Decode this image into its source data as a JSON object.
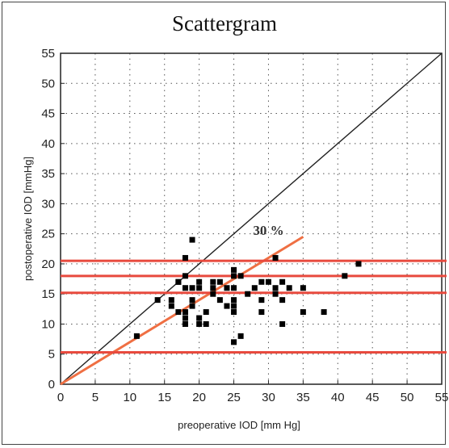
{
  "chart_data": {
    "type": "scatter",
    "title": "Scattergram",
    "xlabel": "preoperative IOD [mm Hg]",
    "ylabel": "postoperative IOD [mmHg]",
    "xlim": [
      0,
      55
    ],
    "ylim": [
      0,
      55
    ],
    "xticks": [
      "0",
      "5",
      "10",
      "15",
      "20",
      "25",
      "30",
      "35",
      "40",
      "45",
      "50",
      "55"
    ],
    "yticks": [
      "0",
      "5",
      "10",
      "15",
      "20",
      "25",
      "30",
      "35",
      "40",
      "45",
      "50",
      "55"
    ],
    "grid": true,
    "points": [
      [
        11,
        8
      ],
      [
        14,
        14
      ],
      [
        16,
        13
      ],
      [
        16,
        14
      ],
      [
        17,
        12
      ],
      [
        17,
        17
      ],
      [
        17,
        17
      ],
      [
        18,
        10
      ],
      [
        18,
        11
      ],
      [
        18,
        12
      ],
      [
        18,
        16
      ],
      [
        18,
        21
      ],
      [
        18,
        18
      ],
      [
        19,
        24
      ],
      [
        19,
        13
      ],
      [
        19,
        14
      ],
      [
        19,
        16
      ],
      [
        20,
        10
      ],
      [
        20,
        11
      ],
      [
        20,
        16
      ],
      [
        20,
        17
      ],
      [
        21,
        12
      ],
      [
        21,
        10
      ],
      [
        22,
        15
      ],
      [
        22,
        16
      ],
      [
        22,
        17
      ],
      [
        23,
        14
      ],
      [
        23,
        17
      ],
      [
        24,
        13
      ],
      [
        24,
        16
      ],
      [
        25,
        7
      ],
      [
        25,
        12
      ],
      [
        25,
        13
      ],
      [
        25,
        14
      ],
      [
        25,
        16
      ],
      [
        25,
        18
      ],
      [
        25,
        19
      ],
      [
        26,
        8
      ],
      [
        26,
        18
      ],
      [
        27,
        15
      ],
      [
        28,
        16
      ],
      [
        29,
        12
      ],
      [
        29,
        14
      ],
      [
        29,
        17
      ],
      [
        30,
        17
      ],
      [
        31,
        16
      ],
      [
        31,
        15
      ],
      [
        31,
        21
      ],
      [
        32,
        10
      ],
      [
        32,
        14
      ],
      [
        32,
        17
      ],
      [
        33,
        16
      ],
      [
        35,
        12
      ],
      [
        35,
        16
      ],
      [
        38,
        12
      ],
      [
        41,
        18
      ],
      [
        43,
        20
      ]
    ],
    "reference_lines": [
      {
        "name": "identity",
        "x": [
          0,
          55
        ],
        "y": [
          0,
          55
        ],
        "color": "#222222"
      },
      {
        "name": "30 % reduction",
        "x": [
          0,
          35
        ],
        "y": [
          0,
          24.5
        ],
        "color": "#ef6f43"
      }
    ],
    "horizontal_lines": [
      20.5,
      18,
      15.2,
      5.3
    ],
    "horizontal_line_color": "#e84a3e",
    "annotations": [
      {
        "text": "30 %",
        "x": 30,
        "y": 24.8
      }
    ],
    "marker_color": "#000000"
  }
}
